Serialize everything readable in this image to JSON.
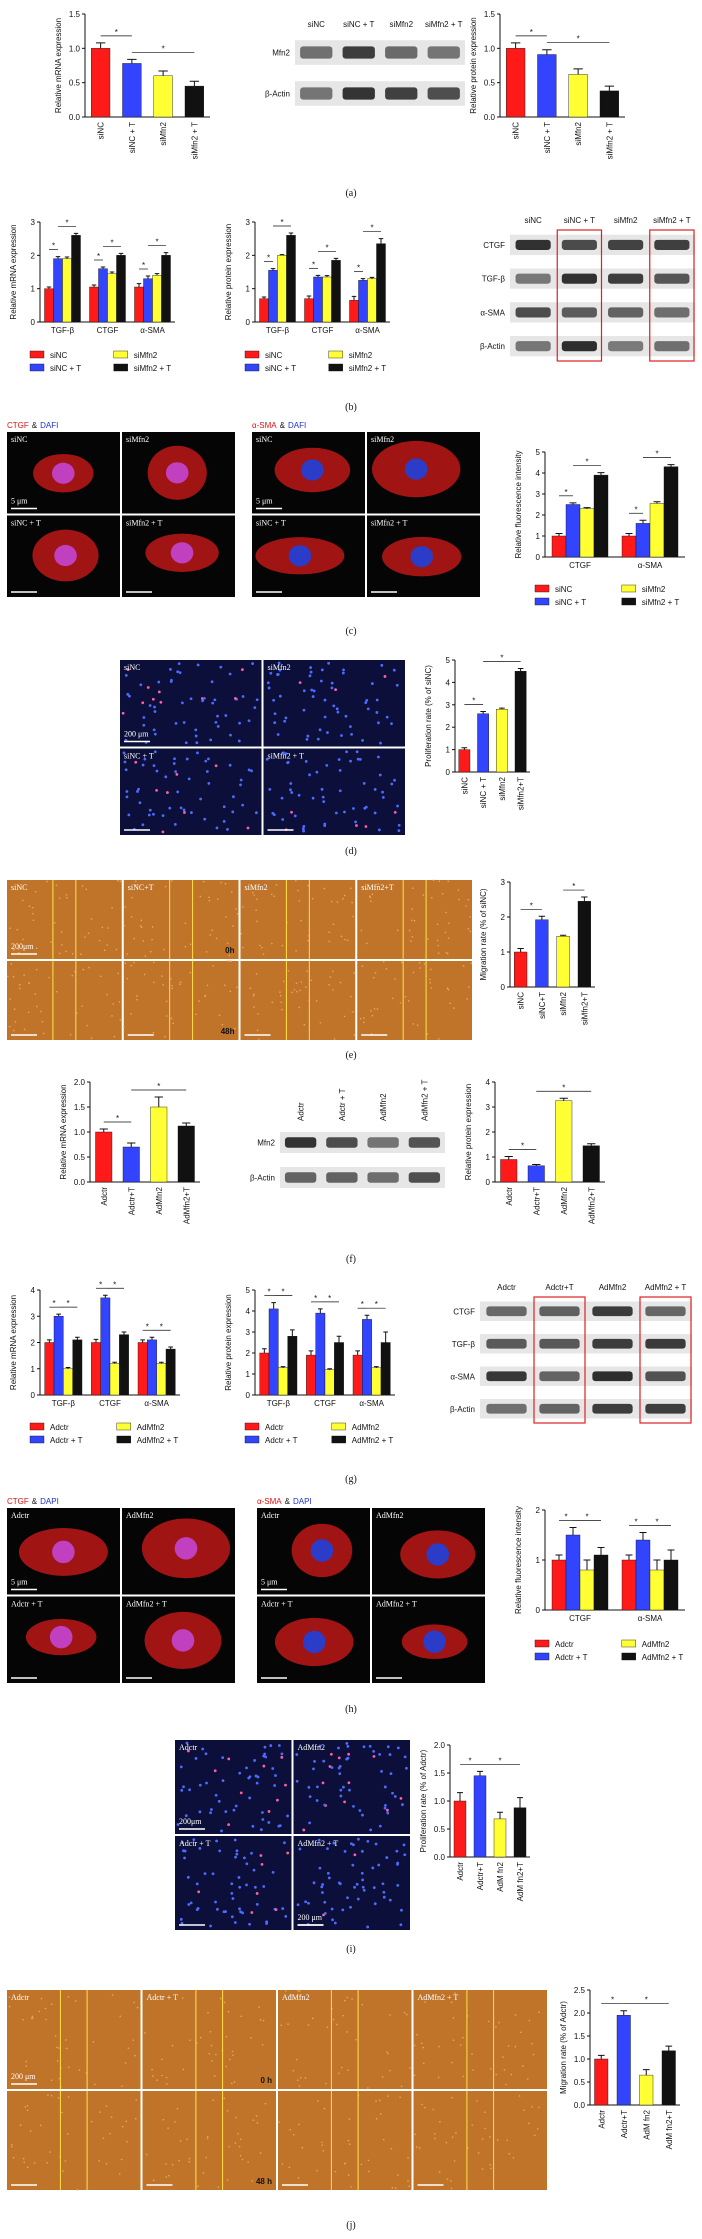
{
  "chart_data": [
    {
      "type": "bar",
      "y_label": "Relative mRNA expression",
      "categories": [
        "siNC",
        "siNC + T",
        "siMfn2",
        "siMfn2 + T"
      ],
      "values": [
        1.0,
        0.78,
        0.6,
        0.45
      ],
      "errors": [
        0.08,
        0.06,
        0.07,
        0.07
      ],
      "colors": [
        "#ff1a1a",
        "#3344ff",
        "#ffff33",
        "#111111"
      ],
      "ylim": [
        0,
        1.5
      ],
      "yticks": [
        {
          "value": 0,
          "label": "0.0"
        },
        0.5,
        {
          "value": 1,
          "label": "1.0"
        },
        1.5
      ],
      "significance": [
        "*",
        "*"
      ]
    },
    {
      "type": "bar",
      "y_label": "Relative protein expression",
      "categories": [
        "siNC",
        "siNC + T",
        "siMfn2",
        "siMfn2 + T"
      ],
      "values": [
        1.0,
        0.91,
        0.62,
        0.38
      ],
      "errors": [
        0.08,
        0.07,
        0.08,
        0.07
      ],
      "colors": [
        "#ff1a1a",
        "#3344ff",
        "#ffff33",
        "#111111"
      ],
      "ylim": [
        0,
        1.5
      ],
      "yticks": [
        {
          "value": 0,
          "label": "0.0"
        },
        0.5,
        {
          "value": 1,
          "label": "1.0"
        },
        1.5
      ],
      "significance": [
        "*",
        "*"
      ]
    },
    {
      "type": "bar",
      "y_label": "Relative mRNA expression",
      "categories": [
        "TGF-β",
        "CTGF",
        "α-SMA"
      ],
      "series": [
        {
          "name": "siNC",
          "color": "#ff1a1a",
          "values": [
            1.0,
            1.05,
            1.05
          ],
          "errors": [
            0.05,
            0.06,
            0.1
          ]
        },
        {
          "name": "siNC + T",
          "color": "#3344ff",
          "values": [
            1.9,
            1.6,
            1.3
          ],
          "errors": [
            0.06,
            0.05,
            0.08
          ]
        },
        {
          "name": "siMfn2",
          "color": "#ffff33",
          "values": [
            1.9,
            1.45,
            1.4
          ],
          "errors": [
            0.05,
            0.05,
            0.05
          ]
        },
        {
          "name": "siMfn2 + T",
          "color": "#111111",
          "values": [
            2.6,
            2.0,
            2.0
          ],
          "errors": [
            0.06,
            0.06,
            0.08
          ]
        }
      ],
      "ylim": [
        0,
        3
      ],
      "yticks": [
        0,
        1,
        2,
        3
      ],
      "significance": [
        "*",
        "*",
        "*",
        "*",
        "*",
        "*"
      ]
    },
    {
      "type": "bar",
      "y_label": "Relative protein expression",
      "categories": [
        "TGF-β",
        "CTGF",
        "α-SMA"
      ],
      "series": [
        {
          "name": "siNC",
          "color": "#ff1a1a",
          "values": [
            0.7,
            0.7,
            0.65
          ],
          "errors": [
            0.05,
            0.08,
            0.12
          ]
        },
        {
          "name": "siNC + T",
          "color": "#3344ff",
          "values": [
            1.55,
            1.35,
            1.25
          ],
          "errors": [
            0.05,
            0.05,
            0.05
          ]
        },
        {
          "name": "siMfn2",
          "color": "#ffff33",
          "values": [
            2.0,
            1.35,
            1.3
          ],
          "errors": [
            0.02,
            0.04,
            0.04
          ]
        },
        {
          "name": "siMfn2 + T",
          "color": "#111111",
          "values": [
            2.6,
            1.85,
            2.35
          ],
          "errors": [
            0.07,
            0.06,
            0.15
          ]
        }
      ],
      "ylim": [
        0,
        3
      ],
      "yticks": [
        0,
        1,
        2,
        3
      ],
      "significance": [
        "*",
        "*",
        "*",
        "*",
        "*",
        "*"
      ]
    },
    {
      "type": "bar",
      "y_label": "Relative fluorescence intensity",
      "categories": [
        "CTGF",
        "α-SMA"
      ],
      "series": [
        {
          "name": "siNC",
          "color": "#ff1a1a",
          "values": [
            1.0,
            1.0
          ],
          "errors": [
            0.12,
            0.12
          ]
        },
        {
          "name": "siNC + T",
          "color": "#3344ff",
          "values": [
            2.5,
            1.6
          ],
          "errors": [
            0.08,
            0.15
          ]
        },
        {
          "name": "siMfn2",
          "color": "#ffff33",
          "values": [
            2.3,
            2.55
          ],
          "errors": [
            0.05,
            0.08
          ]
        },
        {
          "name": "siMfn2 + T",
          "color": "#111111",
          "values": [
            3.9,
            4.3
          ],
          "errors": [
            0.12,
            0.1
          ]
        }
      ],
      "ylim": [
        0,
        5
      ],
      "yticks": [
        0,
        1,
        2,
        3,
        4,
        5
      ],
      "significance": [
        "*",
        "*",
        "*",
        "*"
      ]
    },
    {
      "type": "bar",
      "y_label": "Proliferation rate (% of siNC)",
      "categories": [
        "siNC",
        "siNC + T",
        "siMfn2",
        "siMfn2+T"
      ],
      "values": [
        1.0,
        2.6,
        2.8,
        4.5
      ],
      "errors": [
        0.08,
        0.1,
        0.05,
        0.12
      ],
      "colors": [
        "#ff1a1a",
        "#3344ff",
        "#ffff33",
        "#111111"
      ],
      "ylim": [
        0,
        5
      ],
      "yticks": [
        0,
        1,
        2,
        3,
        4,
        5
      ],
      "significance": [
        "*",
        "*"
      ]
    },
    {
      "type": "bar",
      "y_label": "Migration rate (% of siNC)",
      "categories": [
        "siNC",
        "siNC+T",
        "siMfn2",
        "siMfn2+T"
      ],
      "values": [
        1.0,
        1.92,
        1.45,
        2.45
      ],
      "errors": [
        0.1,
        0.1,
        0.03,
        0.12
      ],
      "colors": [
        "#ff1a1a",
        "#3344ff",
        "#ffff33",
        "#111111"
      ],
      "ylim": [
        0,
        3
      ],
      "yticks": [
        0,
        1,
        2,
        3
      ],
      "significance": [
        "*",
        "*"
      ]
    },
    {
      "type": "bar",
      "y_label": "Relative mRNA expression",
      "categories": [
        "Adctr",
        "Adctr+T",
        "AdMfn2",
        "AdMfn2+T"
      ],
      "values": [
        1.0,
        0.7,
        1.5,
        1.12
      ],
      "errors": [
        0.06,
        0.08,
        0.2,
        0.06
      ],
      "colors": [
        "#ff1a1a",
        "#3344ff",
        "#ffff33",
        "#111111"
      ],
      "ylim": [
        0,
        2
      ],
      "yticks": [
        {
          "value": 0,
          "label": "0.0"
        },
        0.5,
        {
          "value": 1,
          "label": "1.0"
        },
        1.5,
        {
          "value": 2,
          "label": "2.0"
        }
      ],
      "significance": [
        "*",
        "*"
      ]
    },
    {
      "type": "bar",
      "y_label": "Relative protein expression",
      "categories": [
        "Adctr",
        "Adctr+T",
        "AdMfn2",
        "AdMfn2+T"
      ],
      "values": [
        0.9,
        0.65,
        3.25,
        1.45
      ],
      "errors": [
        0.12,
        0.05,
        0.1,
        0.08
      ],
      "colors": [
        "#ff1a1a",
        "#3344ff",
        "#ffff33",
        "#111111"
      ],
      "ylim": [
        0,
        4
      ],
      "yticks": [
        0,
        1,
        2,
        3,
        4
      ],
      "significance": [
        "*",
        "*"
      ]
    },
    {
      "type": "bar",
      "y_label": "Relative mRNA expression",
      "categories": [
        "TGF-β",
        "CTGF",
        "α-SMA"
      ],
      "series": [
        {
          "name": "Adctr",
          "color": "#ff1a1a",
          "values": [
            2.0,
            2.0,
            2.0
          ],
          "errors": [
            0.1,
            0.12,
            0.1
          ]
        },
        {
          "name": "Adctr + T",
          "color": "#3344ff",
          "values": [
            3.0,
            3.7,
            2.1
          ],
          "errors": [
            0.08,
            0.1,
            0.1
          ]
        },
        {
          "name": "AdMfn2",
          "color": "#ffff33",
          "values": [
            1.0,
            1.2,
            1.2
          ],
          "errors": [
            0.05,
            0.05,
            0.05
          ]
        },
        {
          "name": "AdMfn2 + T",
          "color": "#111111",
          "values": [
            2.1,
            2.3,
            1.75
          ],
          "errors": [
            0.1,
            0.1,
            0.08
          ]
        }
      ],
      "ylim": [
        0,
        4
      ],
      "yticks": [
        0,
        1,
        2,
        3,
        4
      ],
      "significance": [
        "*",
        "*",
        "*",
        "*",
        "*",
        "*"
      ]
    },
    {
      "type": "bar",
      "y_label": "Relative protein expression",
      "categories": [
        "TGF-β",
        "CTGF",
        "α-SMA"
      ],
      "series": [
        {
          "name": "Adctr",
          "color": "#ff1a1a",
          "values": [
            2.0,
            1.9,
            1.9
          ],
          "errors": [
            0.2,
            0.2,
            0.2
          ]
        },
        {
          "name": "Adctr + T",
          "color": "#3344ff",
          "values": [
            4.1,
            3.9,
            3.6
          ],
          "errors": [
            0.3,
            0.2,
            0.2
          ]
        },
        {
          "name": "AdMfn2",
          "color": "#ffff33",
          "values": [
            1.3,
            1.2,
            1.3
          ],
          "errors": [
            0.05,
            0.05,
            0.05
          ]
        },
        {
          "name": "AdMfn2 + T",
          "color": "#111111",
          "values": [
            2.8,
            2.5,
            2.5
          ],
          "errors": [
            0.3,
            0.3,
            0.5
          ]
        }
      ],
      "ylim": [
        0,
        5
      ],
      "yticks": [
        0,
        1,
        2,
        3,
        4,
        5
      ],
      "significance": [
        "*",
        "*",
        "*",
        "*",
        "*",
        "*"
      ]
    },
    {
      "type": "bar",
      "y_label": "Relative fluorescence intensity",
      "categories": [
        "CTGF",
        "α-SMA"
      ],
      "series": [
        {
          "name": "Adctr",
          "color": "#ff1a1a",
          "values": [
            1.0,
            1.0
          ],
          "errors": [
            0.1,
            0.1
          ]
        },
        {
          "name": "Adctr + T",
          "color": "#3344ff",
          "values": [
            1.5,
            1.4
          ],
          "errors": [
            0.15,
            0.15
          ]
        },
        {
          "name": "AdMfn2",
          "color": "#ffff33",
          "values": [
            0.8,
            0.8
          ],
          "errors": [
            0.2,
            0.2
          ]
        },
        {
          "name": "AdMfn2 + T",
          "color": "#111111",
          "values": [
            1.1,
            1.0
          ],
          "errors": [
            0.15,
            0.2
          ]
        }
      ],
      "ylim": [
        0,
        2
      ],
      "yticks": [
        0,
        1,
        2
      ],
      "significance": [
        "*",
        "*",
        "*",
        "*"
      ]
    },
    {
      "type": "bar",
      "y_label": "Proliferation rate (% of Adctr)",
      "categories": [
        "Adctr",
        "Adctr+T",
        "AdM fn2",
        "AdM fn2+T"
      ],
      "values": [
        1.0,
        1.45,
        0.68,
        0.88
      ],
      "errors": [
        0.15,
        0.08,
        0.12,
        0.18
      ],
      "colors": [
        "#ff1a1a",
        "#3344ff",
        "#ffff33",
        "#111111"
      ],
      "ylim": [
        0,
        2
      ],
      "yticks": [
        {
          "value": 0,
          "label": "0.0"
        },
        0.5,
        {
          "value": 1,
          "label": "1.0"
        },
        1.5,
        {
          "value": 2,
          "label": "2.0"
        }
      ],
      "significance": [
        "*",
        "*"
      ]
    },
    {
      "type": "bar",
      "y_label": "Migration rate (% of Adctr)",
      "categories": [
        "Adctr",
        "Adctr+T",
        "AdM fn2",
        "AdM fn2+T"
      ],
      "values": [
        1.0,
        1.95,
        0.65,
        1.18
      ],
      "errors": [
        0.08,
        0.1,
        0.12,
        0.1
      ],
      "colors": [
        "#ff1a1a",
        "#3344ff",
        "#ffff33",
        "#111111"
      ],
      "ylim": [
        0,
        2.5
      ],
      "yticks": [
        {
          "value": 0,
          "label": "0.0"
        },
        0.5,
        {
          "value": 1,
          "label": "1.0"
        },
        1.5,
        {
          "value": 2,
          "label": "2.0"
        },
        2.5
      ],
      "significance": [
        "*",
        "*"
      ]
    }
  ],
  "images": [
    {
      "title_parts": [
        "CTGF",
        "&",
        "DAFI"
      ],
      "labels": [
        "siNC",
        "siMfn2",
        "siNC + T",
        "siMfn2 + T"
      ],
      "scale_labels": [
        "5 μm"
      ]
    },
    {
      "title_parts": [
        "α-SMA",
        "&",
        "DAFI"
      ],
      "labels": [
        "siNC",
        "siMfn2",
        "siNC + T",
        "siMfn2 + T"
      ],
      "scale_labels": [
        "5 μm"
      ]
    },
    {
      "labels": [
        "siNC",
        "siMfn2",
        "siNC + T",
        "siMfn2 + T"
      ],
      "scale_labels": [
        "200 μm"
      ]
    },
    {
      "labels": [
        "siNC",
        "siNC+T",
        "siMfn2",
        "siMfn2+T"
      ],
      "scale_labels": [
        "200μm"
      ],
      "time_labels": [
        "0h",
        "48h"
      ]
    },
    {
      "title_parts": [
        "CTGF",
        "&",
        "DAPI"
      ],
      "labels": [
        "Adctr",
        "AdMfn2",
        "Adctr + T",
        "AdMfn2 + T"
      ],
      "scale_labels": [
        "5 μm"
      ]
    },
    {
      "title_parts": [
        "α-SMA",
        "&",
        "DAPI"
      ],
      "labels": [
        "Adctr",
        "AdMfn2",
        "Adctr + T",
        "AdMfn2 + T"
      ],
      "scale_labels": [
        "5 μm"
      ]
    },
    {
      "labels": [
        "Adctr",
        "AdMfn2",
        "Adctr + T",
        "AdMfn2 + T"
      ],
      "scale_labels": [
        "200μm",
        "200 μm"
      ]
    },
    {
      "labels": [
        "Adctr",
        "Adctr + T",
        "AdMfn2",
        "AdMfn2 + T"
      ],
      "scale_labels": [
        "200 μm"
      ],
      "time_labels": [
        "0 h",
        "48 h"
      ]
    }
  ],
  "blots": [
    {
      "columns": [
        "siNC",
        "siNC + T",
        "siMfn2",
        "siMfn2 + T"
      ],
      "rows": [
        "Mfn2",
        "β-Actin"
      ]
    },
    {
      "columns": [
        "siNC",
        "siNC + T",
        "siMfn2",
        "siMfn2 + T"
      ],
      "rows": [
        "CTGF",
        "TGF-β",
        "α-SMA",
        "β-Actin"
      ]
    },
    {
      "columns": [
        "Adctr",
        "Adctr + T",
        "AdMfn2",
        "AdMfn2 + T"
      ],
      "rows": [
        "Mfn2",
        "β-Actin"
      ]
    },
    {
      "columns": [
        "Adctr",
        "Adctr+T",
        "AdMfn2",
        "AdMfn2 + T"
      ],
      "rows": [
        "CTGF",
        "TGF-β",
        "α-SMA",
        "β-Actin"
      ]
    }
  ],
  "panel_labels": [
    "(a)",
    "(b)",
    "(c)",
    "(d)",
    "(e)",
    "(f)",
    "(g)",
    "(h)",
    "(i)",
    "(j)"
  ]
}
